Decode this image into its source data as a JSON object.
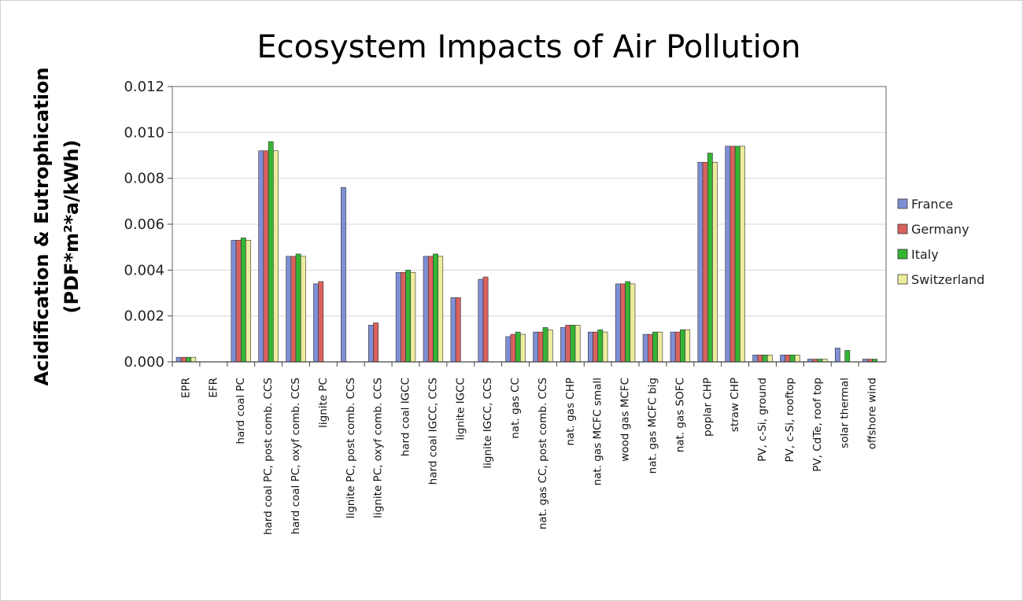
{
  "chart_data": {
    "type": "bar",
    "title": "Ecosystem Impacts of Air Pollution",
    "ylabel_line1": "Acidification & Eutrophication",
    "ylabel_line2": "(PDF*m²*a/kWh)",
    "xlabel": "",
    "ylim": [
      0,
      0.012
    ],
    "yticks": [
      "0.000",
      "0.002",
      "0.004",
      "0.006",
      "0.008",
      "0.010",
      "0.012"
    ],
    "grid": true,
    "legend_position": "right",
    "categories": [
      "EPR",
      "EFR",
      "hard coal PC",
      "hard coal PC, post comb. CCS",
      "hard coal PC, oxyf comb. CCS",
      "lignite PC",
      "lignite PC, post comb. CCS",
      "lignite PC, oxyf comb. CCS",
      "hard coal IGCC",
      "hard coal IGCC, CCS",
      "lignite IGCC",
      "lignite IGCC, CCS",
      "nat. gas CC",
      "nat. gas CC, post comb. CCS",
      "nat. gas CHP",
      "nat. gas MCFC small",
      "wood gas MCFC",
      "nat. gas MCFC big",
      "nat. gas SOFC",
      "poplar CHP",
      "straw CHP",
      "PV, c-Si, ground",
      "PV, c-Si, rooftop",
      "PV, CdTe, roof top",
      "solar thermal",
      "offshore wind"
    ],
    "series": [
      {
        "name": "France",
        "color": "#7f8fd6",
        "values": [
          0.0002,
          null,
          0.0053,
          0.0092,
          0.0046,
          0.0034,
          0.0076,
          0.0016,
          0.0039,
          0.0046,
          0.0028,
          0.0036,
          0.0011,
          0.0013,
          0.0015,
          0.0013,
          0.0034,
          0.0012,
          0.0013,
          0.0087,
          0.0094,
          0.0003,
          0.0003,
          0.00012,
          0.0006,
          0.00012
        ]
      },
      {
        "name": "Germany",
        "color": "#d9625f",
        "values": [
          0.0002,
          null,
          0.0053,
          0.0092,
          0.0046,
          0.0035,
          null,
          0.0017,
          0.0039,
          0.0046,
          0.0028,
          0.0037,
          0.0012,
          0.0013,
          0.0016,
          0.0013,
          0.0034,
          0.0012,
          0.0013,
          0.0087,
          0.0094,
          0.0003,
          0.0003,
          0.00012,
          null,
          0.00012
        ]
      },
      {
        "name": "Italy",
        "color": "#35b534",
        "values": [
          0.0002,
          null,
          0.0054,
          0.0096,
          0.0047,
          null,
          null,
          null,
          0.004,
          0.0047,
          null,
          null,
          0.0013,
          0.0015,
          0.0016,
          0.0014,
          0.0035,
          0.0013,
          0.0014,
          0.0091,
          0.0094,
          0.0003,
          0.0003,
          0.00012,
          0.0005,
          0.00012
        ]
      },
      {
        "name": "Switzerland",
        "color": "#ecec9c",
        "values": [
          0.0002,
          null,
          0.0053,
          0.0092,
          0.0046,
          null,
          null,
          null,
          0.0039,
          0.0046,
          null,
          null,
          0.0012,
          0.0014,
          0.0016,
          0.0013,
          0.0034,
          0.0013,
          0.0014,
          0.0087,
          0.0094,
          0.0003,
          0.0003,
          0.00012,
          null,
          null
        ]
      }
    ]
  }
}
